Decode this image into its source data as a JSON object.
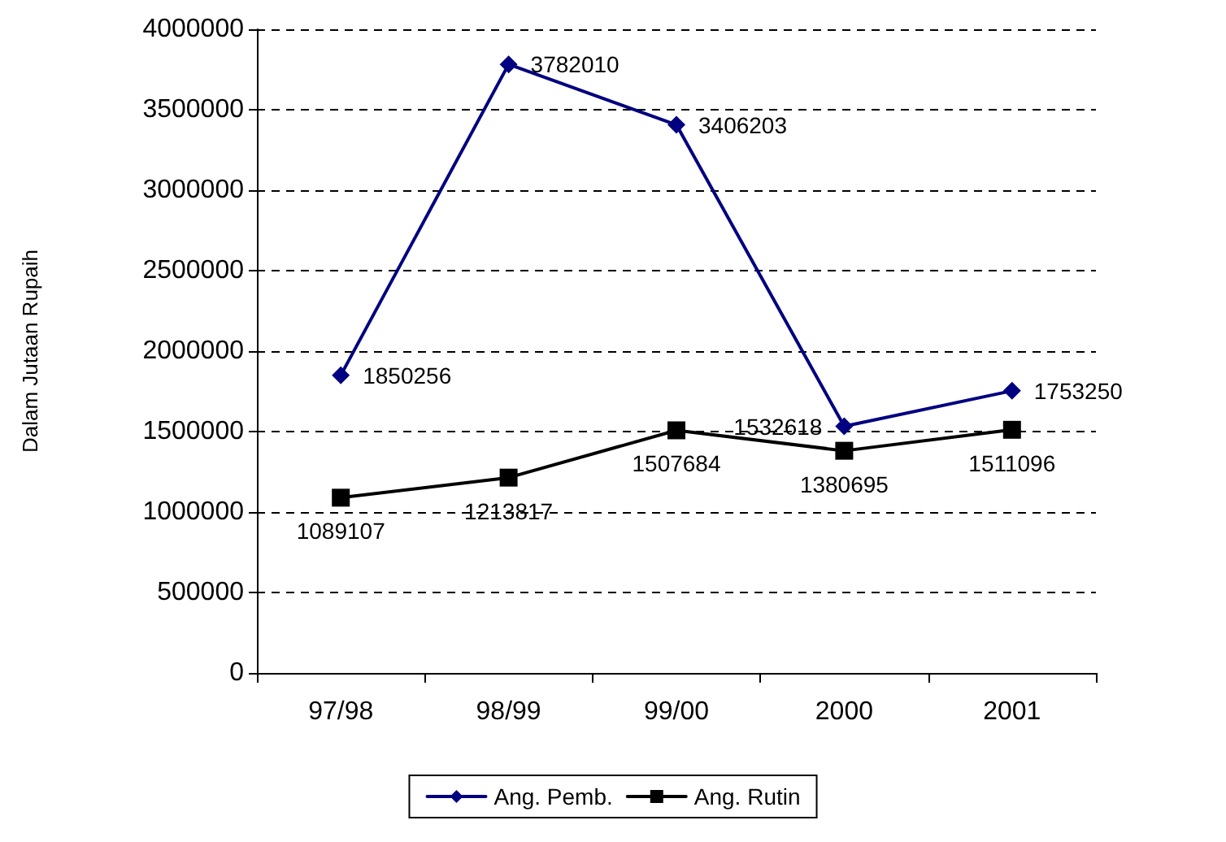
{
  "chart_data": {
    "type": "line",
    "ylabel": "Dalam Jutaan Rupaih",
    "categories": [
      "97/98",
      "98/99",
      "99/00",
      "2000",
      "2001"
    ],
    "series": [
      {
        "name": "Ang. Pemb.",
        "color": "#000080",
        "marker": "diamond",
        "values": [
          1850256,
          3782010,
          3406203,
          1532618,
          1753250
        ]
      },
      {
        "name": "Ang. Rutin",
        "color": "#000000",
        "marker": "square",
        "values": [
          1089107,
          1213817,
          1507684,
          1380695,
          1511096
        ]
      }
    ],
    "ylim": [
      0,
      4000000
    ],
    "yticks": [
      0,
      500000,
      1000000,
      1500000,
      2000000,
      2500000,
      3000000,
      3500000,
      4000000
    ],
    "grid": "y",
    "legend": "bottom",
    "data_labels": true,
    "line_style": "solid"
  }
}
